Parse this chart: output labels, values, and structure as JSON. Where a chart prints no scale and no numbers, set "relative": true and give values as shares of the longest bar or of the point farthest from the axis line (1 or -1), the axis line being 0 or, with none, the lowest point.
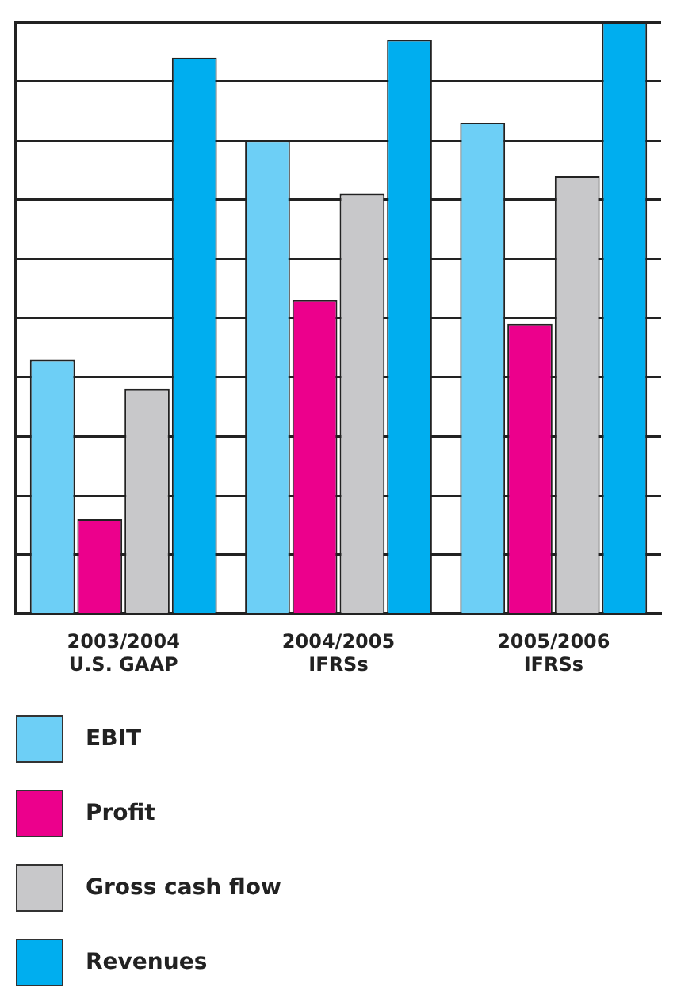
{
  "chart_data": {
    "type": "bar",
    "relative": true,
    "grid": "y",
    "legend": "bottom",
    "categories": [
      "2003/2004\nU.S. GAAP",
      "2004/2005\nIFRSs",
      "2005/2006\nIFRSs"
    ],
    "series": [
      {
        "name": "EBIT",
        "color": "#6dcff6",
        "values": [
          0.43,
          0.8,
          0.83
        ]
      },
      {
        "name": "Profit",
        "color": "#ec008c",
        "values": [
          0.16,
          0.53,
          0.49
        ]
      },
      {
        "name": "Gross cash flow",
        "color": "#c8c8ca",
        "values": [
          0.38,
          0.71,
          0.74
        ]
      },
      {
        "name": "Revenues",
        "color": "#00aeef",
        "values": [
          0.94,
          0.97,
          1
        ]
      }
    ]
  }
}
